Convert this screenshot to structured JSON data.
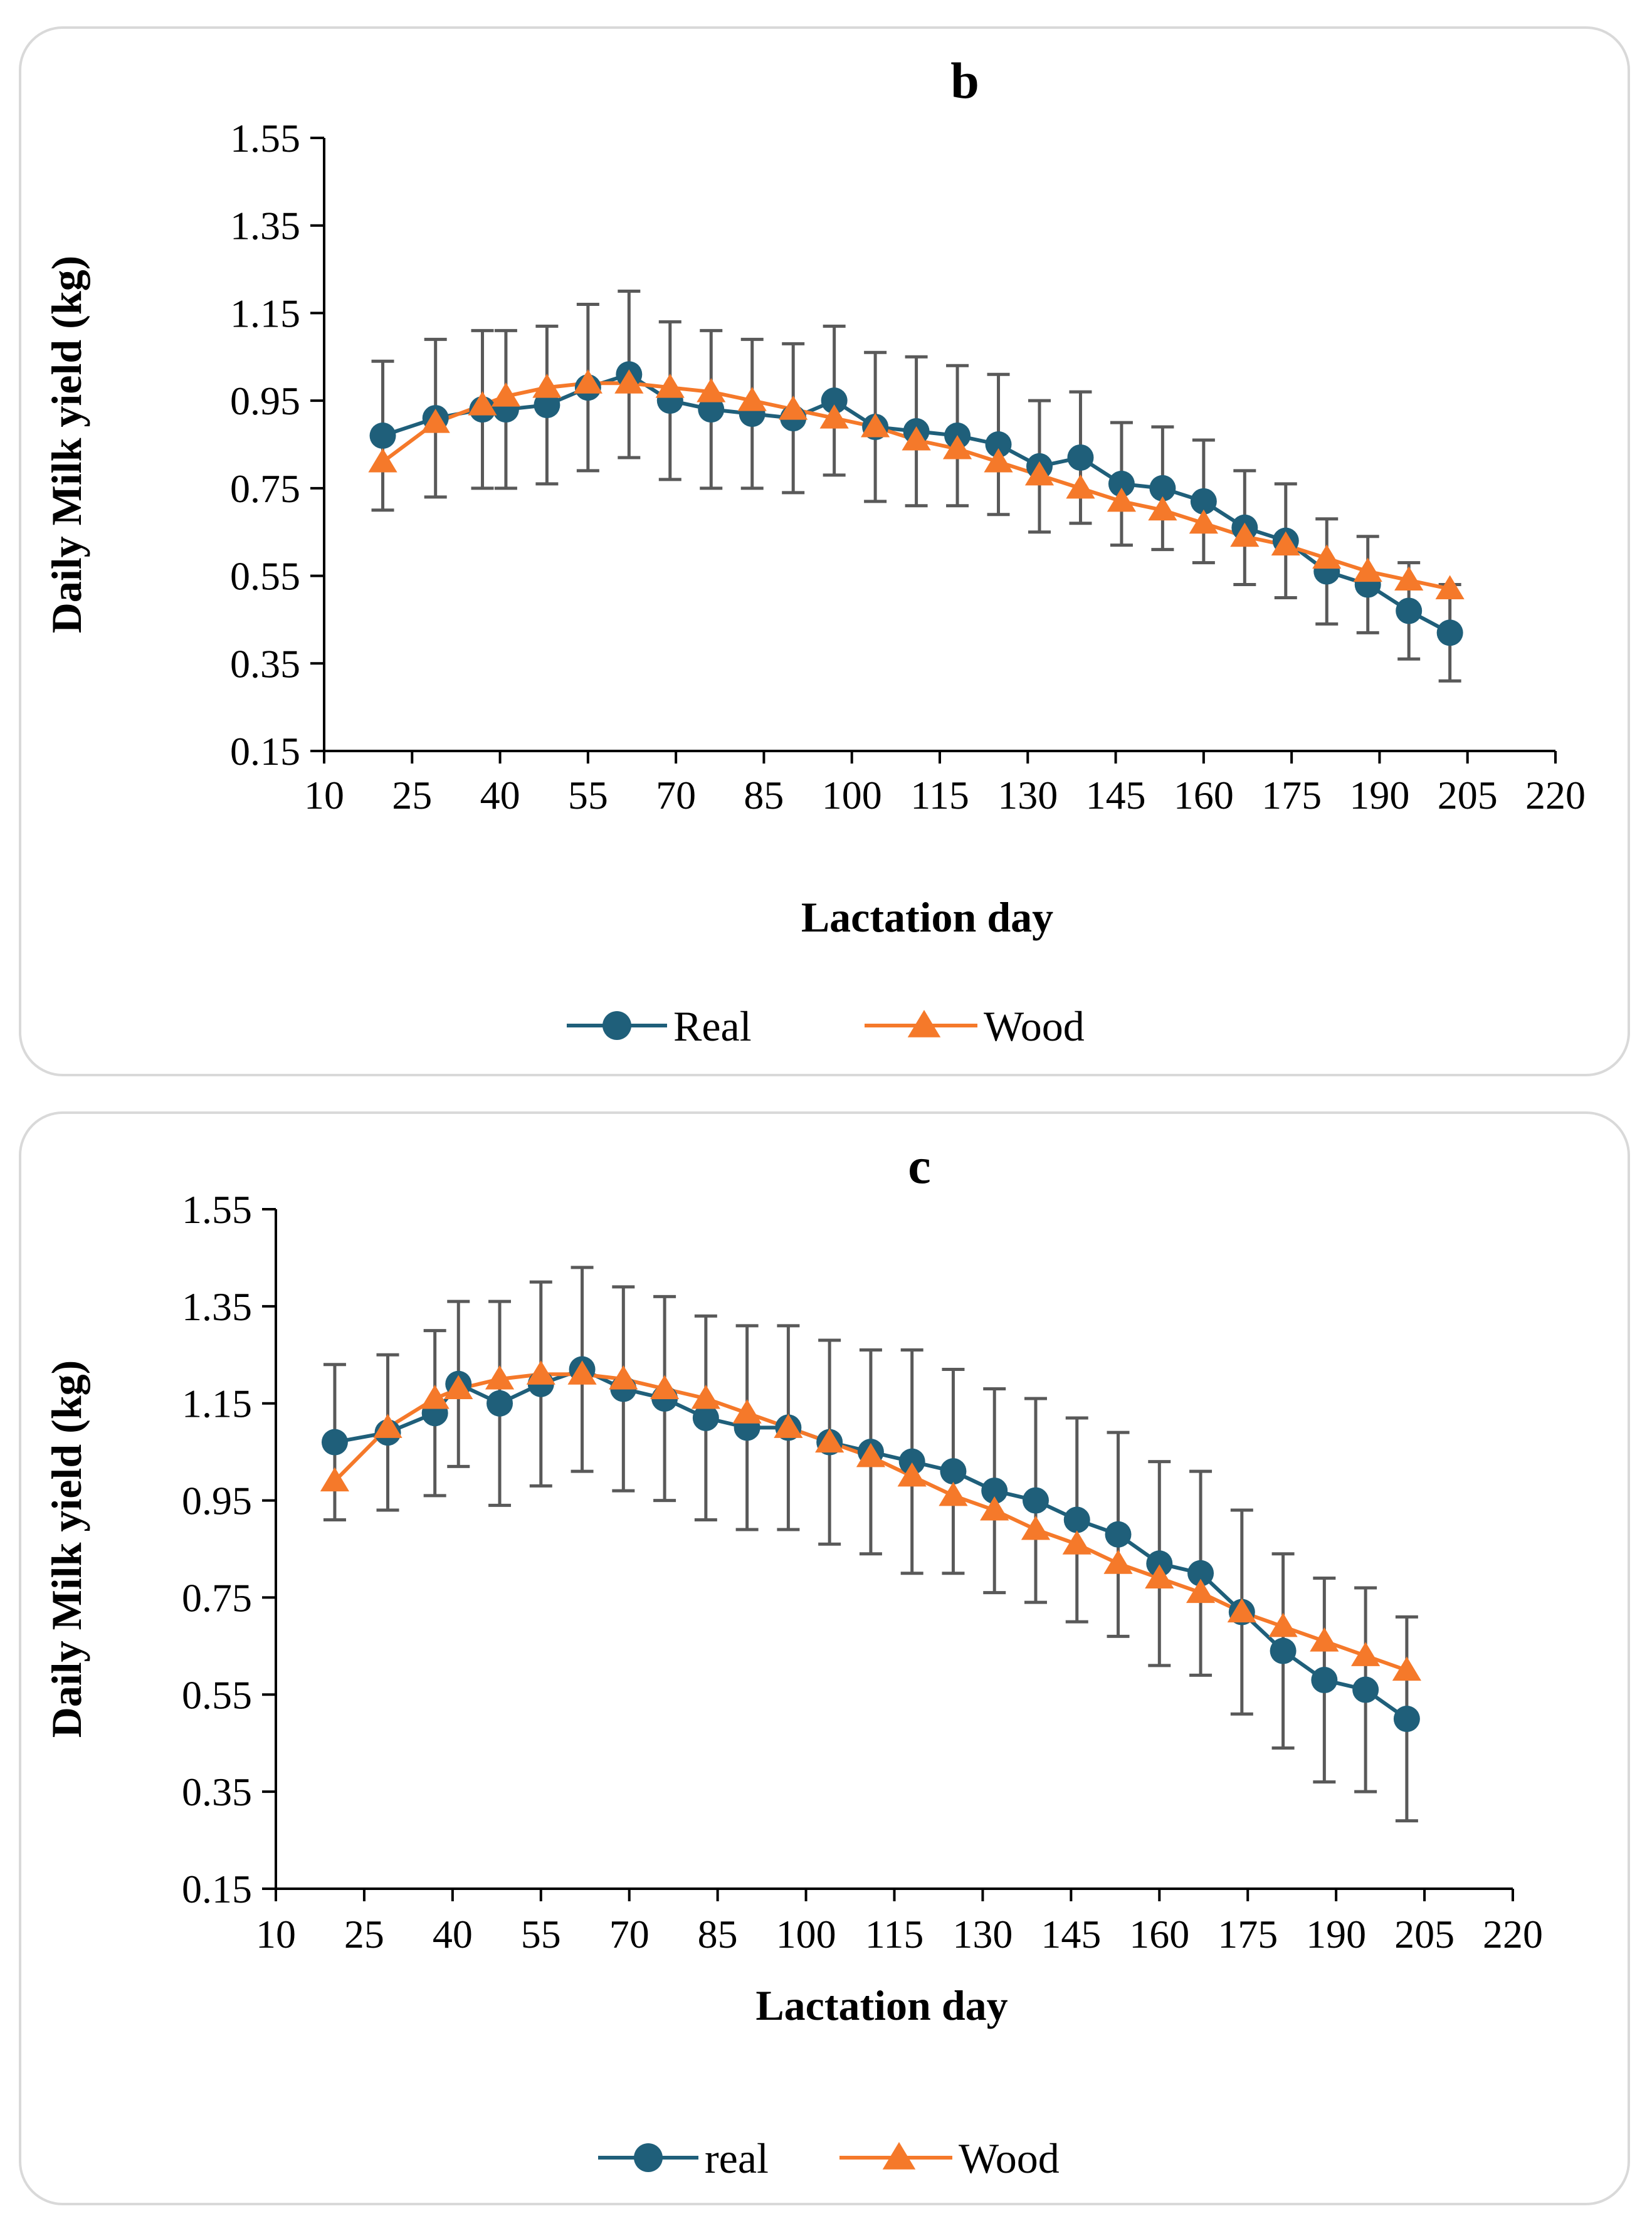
{
  "chart_data": [
    {
      "type": "line",
      "title": "b",
      "xlabel": "Lactation day",
      "ylabel": "Daily Milk yield (kg)",
      "xlim": [
        10,
        220
      ],
      "ylim": [
        0.15,
        1.55
      ],
      "xticks": [
        "10",
        "25",
        "40",
        "55",
        "70",
        "85",
        "100",
        "115",
        "130",
        "145",
        "160",
        "175",
        "190",
        "205",
        "220"
      ],
      "yticks": [
        "1.55",
        "1.35",
        "1.15",
        "0.95",
        "0.75",
        "0.55",
        "0.35",
        "0.15"
      ],
      "legend": [
        "Real",
        "Wood"
      ],
      "legend_position": "bottom",
      "colors": {
        "real": "#1f5f7a",
        "wood": "#f5792a",
        "error_bar": "#595959"
      },
      "x": [
        20,
        29,
        37,
        41,
        48,
        55,
        62,
        69,
        76,
        83,
        90,
        97,
        104,
        111,
        118,
        125,
        132,
        139,
        146,
        153,
        160,
        167,
        174,
        181,
        188,
        195,
        202
      ],
      "series": [
        {
          "name": "Real",
          "values": [
            0.87,
            0.91,
            0.93,
            0.93,
            0.94,
            0.98,
            1.01,
            0.95,
            0.93,
            0.92,
            0.91,
            0.95,
            0.89,
            0.88,
            0.87,
            0.85,
            0.8,
            0.82,
            0.76,
            0.75,
            0.72,
            0.66,
            0.63,
            0.56,
            0.53,
            0.47,
            0.42
          ],
          "error": [
            0.17,
            0.18,
            0.18,
            0.18,
            0.18,
            0.19,
            0.19,
            0.18,
            0.18,
            0.17,
            0.17,
            0.17,
            0.17,
            0.17,
            0.16,
            0.16,
            0.15,
            0.15,
            0.14,
            0.14,
            0.14,
            0.13,
            0.13,
            0.12,
            0.11,
            0.11,
            0.11
          ]
        },
        {
          "name": "Wood",
          "values": [
            0.81,
            0.9,
            0.94,
            0.96,
            0.98,
            0.99,
            0.99,
            0.98,
            0.97,
            0.95,
            0.93,
            0.91,
            0.89,
            0.86,
            0.84,
            0.81,
            0.78,
            0.75,
            0.72,
            0.7,
            0.67,
            0.64,
            0.62,
            0.59,
            0.56,
            0.54,
            0.52
          ]
        }
      ]
    },
    {
      "type": "line",
      "title": "c",
      "xlabel": "Lactation day",
      "ylabel": "Daily Milk yield (kg)",
      "xlim": [
        10,
        220
      ],
      "ylim": [
        0.15,
        1.55
      ],
      "xticks": [
        "10",
        "25",
        "40",
        "55",
        "70",
        "85",
        "100",
        "115",
        "130",
        "145",
        "160",
        "175",
        "190",
        "205",
        "220"
      ],
      "yticks": [
        "1.55",
        "1.35",
        "1.15",
        "0.95",
        "0.75",
        "0.55",
        "0.35",
        "0.15"
      ],
      "legend": [
        "real",
        "Wood"
      ],
      "legend_position": "bottom",
      "colors": {
        "real": "#1f5f7a",
        "wood": "#f5792a",
        "error_bar": "#595959"
      },
      "x": [
        20,
        29,
        37,
        41,
        48,
        55,
        62,
        69,
        76,
        83,
        90,
        97,
        104,
        111,
        118,
        125,
        132,
        139,
        146,
        153,
        160,
        167,
        174,
        181,
        188,
        195,
        202
      ],
      "series": [
        {
          "name": "real",
          "values": [
            1.07,
            1.09,
            1.13,
            1.19,
            1.15,
            1.19,
            1.22,
            1.18,
            1.16,
            1.12,
            1.1,
            1.1,
            1.07,
            1.05,
            1.03,
            1.01,
            0.97,
            0.95,
            0.91,
            0.88,
            0.82,
            0.8,
            0.72,
            0.64,
            0.58,
            0.56,
            0.5
          ],
          "error": [
            0.16,
            0.16,
            0.17,
            0.17,
            0.21,
            0.21,
            0.21,
            0.21,
            0.21,
            0.21,
            0.21,
            0.21,
            0.21,
            0.21,
            0.23,
            0.21,
            0.21,
            0.21,
            0.21,
            0.21,
            0.21,
            0.21,
            0.21,
            0.2,
            0.21,
            0.21,
            0.21
          ]
        },
        {
          "name": "Wood",
          "values": [
            0.99,
            1.1,
            1.16,
            1.18,
            1.2,
            1.21,
            1.21,
            1.2,
            1.18,
            1.16,
            1.13,
            1.1,
            1.07,
            1.04,
            1.0,
            0.96,
            0.93,
            0.89,
            0.86,
            0.82,
            0.79,
            0.76,
            0.72,
            0.69,
            0.66,
            0.63,
            0.6
          ]
        }
      ]
    }
  ]
}
